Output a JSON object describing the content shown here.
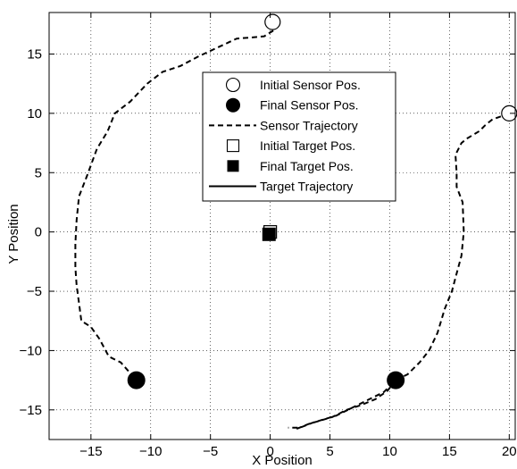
{
  "chart_data": {
    "type": "line",
    "xlabel": "X Position",
    "ylabel": "Y Position",
    "xlim": [
      -18.5,
      20.5
    ],
    "ylim": [
      -17.5,
      18.5
    ],
    "xticks": [
      -15,
      -10,
      -5,
      0,
      5,
      10,
      15,
      20
    ],
    "yticks": [
      -15,
      -10,
      -5,
      0,
      5,
      10,
      15
    ],
    "grid": true,
    "legend_placement": "upper-center",
    "legend": [
      {
        "label": "Initial Sensor Pos.",
        "marker": "open-circle"
      },
      {
        "label": "Final Sensor Pos.",
        "marker": "filled-circle"
      },
      {
        "label": "Sensor Trajectory",
        "marker": "dashed-line"
      },
      {
        "label": "Initial Target Pos.",
        "marker": "open-square"
      },
      {
        "label": "Final Target Pos.",
        "marker": "filled-square"
      },
      {
        "label": "Target Trajectory",
        "marker": "solid-line"
      }
    ],
    "sensor_trajectories": [
      {
        "points": [
          [
            0.2,
            17.7
          ],
          [
            0.3,
            17.0
          ],
          [
            -0.5,
            16.5
          ],
          [
            -1.5,
            16.4
          ],
          [
            -2.8,
            16.3
          ],
          [
            -4.5,
            15.5
          ],
          [
            -6.0,
            14.8
          ],
          [
            -7.5,
            14.0
          ],
          [
            -9.0,
            13.5
          ],
          [
            -10.3,
            12.5
          ],
          [
            -11.7,
            11.0
          ],
          [
            -13.0,
            10.0
          ],
          [
            -13.6,
            8.5
          ],
          [
            -14.5,
            7.0
          ],
          [
            -15.3,
            4.8
          ],
          [
            -16.0,
            3.0
          ],
          [
            -16.2,
            1.0
          ],
          [
            -16.3,
            -1.0
          ],
          [
            -16.3,
            -3.0
          ],
          [
            -16.2,
            -4.5
          ],
          [
            -16.0,
            -6.0
          ],
          [
            -15.8,
            -7.5
          ],
          [
            -15.0,
            -8.0
          ],
          [
            -14.3,
            -9.0
          ],
          [
            -13.5,
            -10.5
          ],
          [
            -12.5,
            -11.0
          ],
          [
            -11.2,
            -12.5
          ]
        ]
      },
      {
        "points": [
          [
            20.0,
            10.0
          ],
          [
            19.2,
            9.7
          ],
          [
            18.6,
            9.5
          ],
          [
            18.0,
            9.0
          ],
          [
            17.5,
            8.5
          ],
          [
            17.0,
            8.2
          ],
          [
            16.5,
            7.9
          ],
          [
            16.0,
            7.5
          ],
          [
            15.5,
            6.5
          ],
          [
            15.6,
            5.0
          ],
          [
            15.6,
            3.8
          ],
          [
            16.1,
            2.5
          ],
          [
            16.2,
            0.0
          ],
          [
            16.0,
            -2.0
          ],
          [
            15.6,
            -3.5
          ],
          [
            15.2,
            -5.0
          ],
          [
            14.6,
            -6.5
          ],
          [
            14.0,
            -8.5
          ],
          [
            13.3,
            -10.0
          ],
          [
            12.5,
            -11.0
          ],
          [
            11.5,
            -12.0
          ],
          [
            10.5,
            -12.5
          ],
          [
            9.5,
            -13.5
          ],
          [
            8.5,
            -14.0
          ],
          [
            7.5,
            -14.5
          ],
          [
            6.5,
            -15.0
          ],
          [
            5.5,
            -15.5
          ],
          [
            4.5,
            -15.8
          ],
          [
            3.5,
            -16.1
          ],
          [
            2.5,
            -16.5
          ],
          [
            1.5,
            -16.5
          ]
        ]
      },
      {
        "points": [
          [
            10.5,
            -12.5
          ],
          [
            9.8,
            -13.4
          ],
          [
            8.8,
            -14.1
          ],
          [
            7.6,
            -14.6
          ],
          [
            6.4,
            -15.0
          ],
          [
            5.2,
            -15.6
          ],
          [
            4.2,
            -15.9
          ],
          [
            3.2,
            -16.2
          ],
          [
            2.2,
            -16.6
          ]
        ]
      }
    ],
    "initial_sensor_positions": [
      [
        0.2,
        17.7
      ],
      [
        20.0,
        10.0
      ]
    ],
    "final_sensor_positions": [
      [
        -11.2,
        -12.5
      ],
      [
        10.5,
        -12.5
      ]
    ],
    "initial_target_position": [
      0.0,
      0.0
    ],
    "final_target_position": [
      -0.1,
      -0.2
    ],
    "target_trajectory": [
      [
        0.0,
        0.0
      ],
      [
        -0.05,
        -0.1
      ],
      [
        -0.1,
        -0.2
      ]
    ]
  }
}
